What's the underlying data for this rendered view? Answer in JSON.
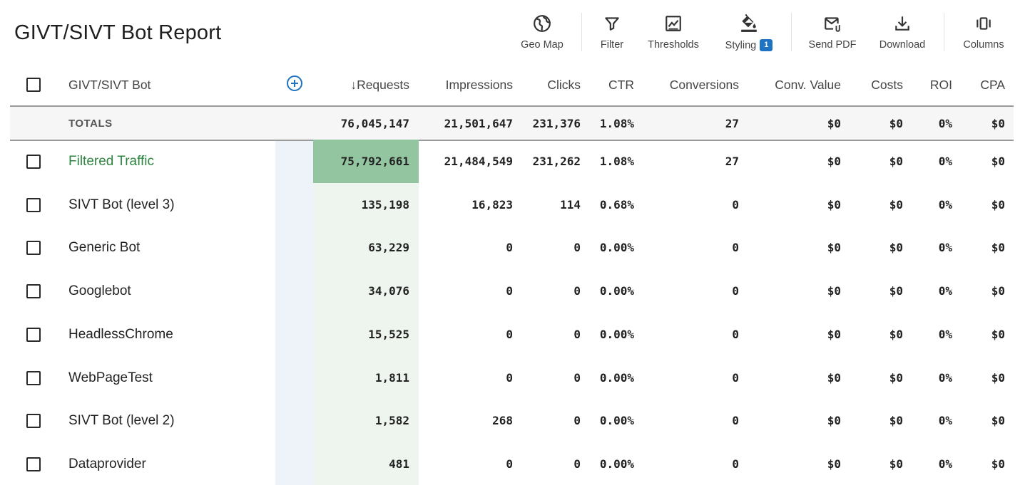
{
  "title": "GIVT/SIVT Bot Report",
  "toolbar": {
    "geo_map": "Geo Map",
    "filter": "Filter",
    "thresholds": "Thresholds",
    "styling": "Styling",
    "styling_badge": "1",
    "send_pdf": "Send PDF",
    "download": "Download",
    "columns": "Columns"
  },
  "table": {
    "headers": {
      "dimension": "GIVT/SIVT Bot",
      "requests": "↓Requests",
      "impressions": "Impressions",
      "clicks": "Clicks",
      "ctr": "CTR",
      "conversions": "Conversions",
      "conv_value": "Conv. Value",
      "costs": "Costs",
      "roi": "ROI",
      "cpa": "CPA"
    },
    "totals": {
      "label": "TOTALS",
      "requests": "76,045,147",
      "impressions": "21,501,647",
      "clicks": "231,376",
      "ctr": "1.08%",
      "conversions": "27",
      "conv_value": "$0",
      "costs": "$0",
      "roi": "0%",
      "cpa": "$0"
    },
    "rows": [
      {
        "name": "Filtered Traffic",
        "requests": "75,792,661",
        "impressions": "21,484,549",
        "clicks": "231,262",
        "ctr": "1.08%",
        "conversions": "27",
        "conv_value": "$0",
        "costs": "$0",
        "roi": "0%",
        "cpa": "$0"
      },
      {
        "name": "SIVT Bot (level 3)",
        "requests": "135,198",
        "impressions": "16,823",
        "clicks": "114",
        "ctr": "0.68%",
        "conversions": "0",
        "conv_value": "$0",
        "costs": "$0",
        "roi": "0%",
        "cpa": "$0"
      },
      {
        "name": "Generic Bot",
        "requests": "63,229",
        "impressions": "0",
        "clicks": "0",
        "ctr": "0.00%",
        "conversions": "0",
        "conv_value": "$0",
        "costs": "$0",
        "roi": "0%",
        "cpa": "$0"
      },
      {
        "name": "Googlebot",
        "requests": "34,076",
        "impressions": "0",
        "clicks": "0",
        "ctr": "0.00%",
        "conversions": "0",
        "conv_value": "$0",
        "costs": "$0",
        "roi": "0%",
        "cpa": "$0"
      },
      {
        "name": "HeadlessChrome",
        "requests": "15,525",
        "impressions": "0",
        "clicks": "0",
        "ctr": "0.00%",
        "conversions": "0",
        "conv_value": "$0",
        "costs": "$0",
        "roi": "0%",
        "cpa": "$0"
      },
      {
        "name": "WebPageTest",
        "requests": "1,811",
        "impressions": "0",
        "clicks": "0",
        "ctr": "0.00%",
        "conversions": "0",
        "conv_value": "$0",
        "costs": "$0",
        "roi": "0%",
        "cpa": "$0"
      },
      {
        "name": "SIVT Bot (level 2)",
        "requests": "1,582",
        "impressions": "268",
        "clicks": "0",
        "ctr": "0.00%",
        "conversions": "0",
        "conv_value": "$0",
        "costs": "$0",
        "roi": "0%",
        "cpa": "$0"
      },
      {
        "name": "Dataprovider",
        "requests": "481",
        "impressions": "0",
        "clicks": "0",
        "ctr": "0.00%",
        "conversions": "0",
        "conv_value": "$0",
        "costs": "$0",
        "roi": "0%",
        "cpa": "$0"
      }
    ]
  },
  "colors": {
    "accent_blue": "#1f73c2",
    "highlight_green": "#93c6a0",
    "filtered_name": "#2e8540"
  }
}
